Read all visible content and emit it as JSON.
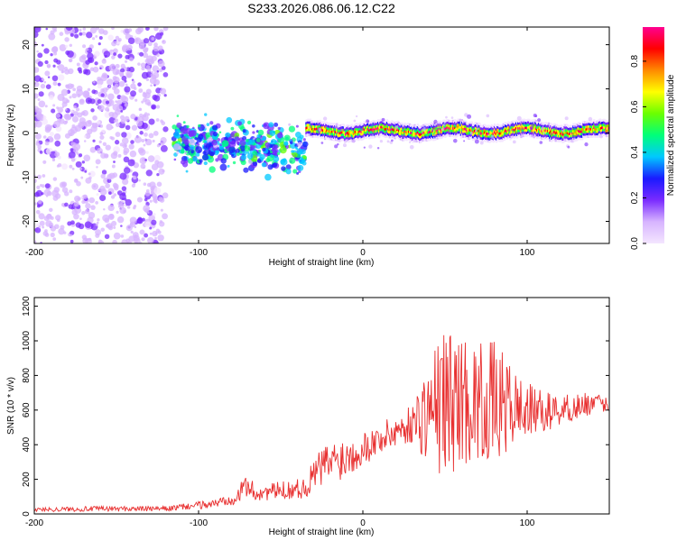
{
  "title": "S233.2026.086.06.12.C22",
  "chart_data": [
    {
      "type": "heatmap",
      "xlabel": "Height of straight line (km)",
      "ylabel": "Frequency (Hz)",
      "xlim": [
        -200,
        150
      ],
      "ylim": [
        -25,
        24
      ],
      "xticks": [
        "-200",
        "-100",
        "0",
        "100"
      ],
      "xtick_values": [
        -200,
        -100,
        0,
        100
      ],
      "yticks": [
        "-20",
        "-10",
        "0",
        "10",
        "20"
      ],
      "ytick_values": [
        -20,
        -10,
        0,
        10,
        20
      ],
      "colorbar": {
        "label": "Normalized spectral amplitude",
        "range": [
          0,
          0.95
        ],
        "ticks": [
          "0.0",
          "0.2",
          "0.4",
          "0.6",
          "0.8"
        ],
        "tick_values": [
          0.0,
          0.2,
          0.4,
          0.6,
          0.8
        ],
        "stops": [
          "#f4e6ff",
          "#d7b4ff",
          "#7a2bff",
          "#1a1aff",
          "#00c8ff",
          "#00ff7a",
          "#6aff00",
          "#ffff00",
          "#ff8a00",
          "#ff0000",
          "#ff0090"
        ]
      },
      "regions": [
        {
          "name": "scattered noise",
          "x": [
            -200,
            -120
          ],
          "freq_range": [
            -25,
            24
          ],
          "amplitude": 0.05
        },
        {
          "name": "dense cluster",
          "x": [
            -115,
            -35
          ],
          "freq_range": [
            -12,
            6
          ],
          "amplitude": 0.3
        },
        {
          "name": "coherent band",
          "x": [
            -35,
            150
          ],
          "center_freq": 0.5,
          "amplitude": 0.85
        }
      ]
    },
    {
      "type": "line",
      "xlabel": "Height of straight line (km)",
      "ylabel": "SNR (10 * v/v)",
      "xlim": [
        -200,
        150
      ],
      "ylim": [
        0,
        1250
      ],
      "xticks": [
        "-200",
        "-100",
        "0",
        "100"
      ],
      "xtick_values": [
        -200,
        -100,
        0,
        100
      ],
      "yticks": [
        "0",
        "200",
        "400",
        "600",
        "800",
        "1000",
        "1200"
      ],
      "ytick_values": [
        0,
        200,
        400,
        600,
        800,
        1000,
        1200
      ],
      "color": "#e83030",
      "envelope": {
        "x": [
          -200,
          -160,
          -120,
          -90,
          -75,
          -72,
          -65,
          -55,
          -35,
          -28,
          -20,
          -10,
          0,
          10,
          20,
          30,
          35,
          45,
          50,
          60,
          70,
          80,
          90,
          100,
          110,
          120,
          130,
          140,
          150
        ],
        "mean": [
          25,
          30,
          30,
          60,
          110,
          170,
          120,
          130,
          150,
          250,
          300,
          330,
          380,
          430,
          480,
          520,
          560,
          620,
          650,
          660,
          650,
          640,
          620,
          600,
          590,
          600,
          620,
          640,
          630
        ],
        "spread": [
          12,
          15,
          15,
          25,
          50,
          70,
          50,
          50,
          60,
          110,
          130,
          120,
          100,
          90,
          100,
          110,
          220,
          380,
          450,
          380,
          340,
          360,
          250,
          160,
          120,
          90,
          80,
          60,
          40
        ]
      }
    }
  ]
}
